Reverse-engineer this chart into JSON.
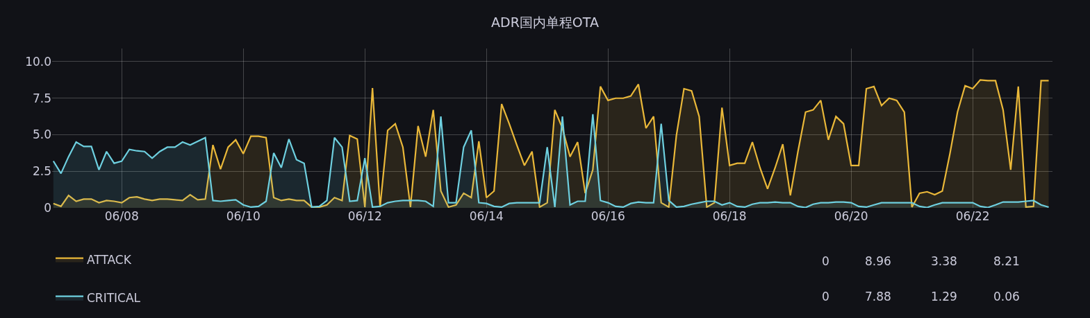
{
  "chart_data": {
    "type": "area",
    "title": "ADR国内单程OTA",
    "x": [
      "--06-06T21:00",
      "--06-07T00:00",
      "--06-07T03:00",
      "--06-07T06:00",
      "--06-07T09:00",
      "--06-07T12:00",
      "--06-07T15:00",
      "--06-07T18:00",
      "--06-07T21:00",
      "--06-08T00:00",
      "--06-08T03:00",
      "--06-08T06:00",
      "--06-08T09:00",
      "--06-08T12:00",
      "--06-08T15:00",
      "--06-08T18:00",
      "--06-08T21:00",
      "--06-09T00:00",
      "--06-09T03:00",
      "--06-09T06:00",
      "--06-09T09:00",
      "--06-09T12:00",
      "--06-09T15:00",
      "--06-09T18:00",
      "--06-09T21:00",
      "--06-10T00:00",
      "--06-10T03:00",
      "--06-10T06:00",
      "--06-10T09:00",
      "--06-10T12:00",
      "--06-10T15:00",
      "--06-10T18:00",
      "--06-10T21:00",
      "--06-11T00:00",
      "--06-11T03:00",
      "--06-11T06:00",
      "--06-11T09:00",
      "--06-11T12:00",
      "--06-11T15:00",
      "--06-11T18:00",
      "--06-11T21:00",
      "--06-12T00:00",
      "--06-12T03:00",
      "--06-12T06:00",
      "--06-12T09:00",
      "--06-12T12:00",
      "--06-12T15:00",
      "--06-12T18:00",
      "--06-12T21:00",
      "--06-13T00:00",
      "--06-13T03:00",
      "--06-13T06:00",
      "--06-13T09:00",
      "--06-13T12:00",
      "--06-13T15:00",
      "--06-13T18:00",
      "--06-13T21:00",
      "--06-14T00:00",
      "--06-14T03:00",
      "--06-14T06:00",
      "--06-14T09:00",
      "--06-14T12:00",
      "--06-14T15:00",
      "--06-14T18:00",
      "--06-14T21:00",
      "--06-15T00:00",
      "--06-15T03:00",
      "--06-15T06:00",
      "--06-15T09:00",
      "--06-15T12:00",
      "--06-15T15:00",
      "--06-15T18:00",
      "--06-15T21:00",
      "--06-16T00:00",
      "--06-16T03:00",
      "--06-16T06:00",
      "--06-16T09:00",
      "--06-16T12:00",
      "--06-16T15:00",
      "--06-16T18:00",
      "--06-16T21:00",
      "--06-17T00:00",
      "--06-17T03:00",
      "--06-17T06:00",
      "--06-17T09:00",
      "--06-17T12:00",
      "--06-17T15:00",
      "--06-17T18:00",
      "--06-17T21:00",
      "--06-18T00:00",
      "--06-18T03:00",
      "--06-18T06:00",
      "--06-18T09:00",
      "--06-18T12:00",
      "--06-18T15:00",
      "--06-18T18:00",
      "--06-18T21:00",
      "--06-19T00:00",
      "--06-19T03:00",
      "--06-19T06:00",
      "--06-19T09:00",
      "--06-19T12:00",
      "--06-19T15:00",
      "--06-19T18:00",
      "--06-19T21:00",
      "--06-20T00:00",
      "--06-20T03:00",
      "--06-20T06:00",
      "--06-20T09:00",
      "--06-20T12:00",
      "--06-20T15:00",
      "--06-20T18:00",
      "--06-20T21:00",
      "--06-21T00:00",
      "--06-21T03:00",
      "--06-21T06:00",
      "--06-21T09:00",
      "--06-21T12:00",
      "--06-21T15:00",
      "--06-21T18:00",
      "--06-21T21:00",
      "--06-22T00:00",
      "--06-22T03:00",
      "--06-22T06:00",
      "--06-22T09:00",
      "--06-22T12:00",
      "--06-22T15:00",
      "--06-22T18:00",
      "--06-22T21:00",
      "--06-23T00:00",
      "--06-23T03:00",
      "--06-23T06:00"
    ],
    "series": [
      {
        "name": "ATTACK",
        "color": "#eab839",
        "values": [
          0.3,
          0.1,
          0.85,
          0.45,
          0.6,
          0.6,
          0.35,
          0.5,
          0.45,
          0.35,
          0.7,
          0.75,
          0.6,
          0.5,
          0.6,
          0.6,
          0.55,
          0.5,
          0.9,
          0.55,
          0.6,
          4.3,
          2.65,
          4.15,
          4.65,
          3.7,
          4.9,
          4.9,
          4.8,
          0.7,
          0.5,
          0.6,
          0.5,
          0.5,
          0.05,
          0.05,
          0.2,
          0.7,
          0.5,
          4.95,
          4.7,
          0.05,
          8.2,
          0.05,
          5.3,
          5.75,
          4.15,
          0.05,
          5.6,
          3.5,
          6.7,
          1.15,
          0.05,
          0.2,
          1.0,
          0.7,
          4.55,
          0.7,
          1.15,
          7.1,
          5.75,
          4.3,
          2.9,
          3.85,
          0.05,
          0.35,
          6.7,
          5.45,
          3.5,
          4.5,
          1.0,
          2.6,
          8.3,
          7.35,
          7.5,
          7.5,
          7.65,
          8.45,
          5.45,
          6.25,
          0.35,
          0.05,
          4.95,
          8.15,
          8.0,
          6.25,
          0.05,
          0.35,
          6.85,
          2.9,
          3.05,
          3.05,
          4.5,
          2.75,
          1.3,
          2.75,
          4.35,
          0.85,
          3.85,
          6.55,
          6.7,
          7.35,
          4.65,
          6.25,
          5.75,
          2.9,
          2.9,
          8.15,
          8.3,
          7.0,
          7.5,
          7.35,
          6.55,
          0.05,
          1.0,
          1.1,
          0.9,
          1.15,
          3.7,
          6.55,
          8.35,
          8.15,
          8.75,
          8.7,
          8.7,
          6.7,
          2.6,
          8.3,
          0.05,
          0.1,
          8.7,
          8.7
        ]
      },
      {
        "name": "CRITICAL",
        "color": "#6ed0e0",
        "values": [
          3.2,
          2.35,
          3.5,
          4.5,
          4.2,
          4.2,
          2.6,
          3.85,
          3.05,
          3.2,
          4.0,
          3.9,
          3.85,
          3.4,
          3.85,
          4.15,
          4.15,
          4.5,
          4.3,
          4.55,
          4.8,
          0.5,
          0.45,
          0.5,
          0.55,
          0.2,
          0.05,
          0.1,
          0.45,
          3.75,
          2.75,
          4.7,
          3.3,
          3.05,
          0.05,
          0.1,
          0.5,
          4.8,
          4.15,
          0.45,
          0.5,
          3.4,
          0.05,
          0.1,
          0.35,
          0.45,
          0.5,
          0.5,
          0.5,
          0.45,
          0.1,
          6.25,
          0.35,
          0.35,
          4.15,
          5.3,
          0.35,
          0.3,
          0.1,
          0.05,
          0.3,
          0.35,
          0.35,
          0.35,
          0.35,
          4.15,
          0.05,
          6.25,
          0.2,
          0.45,
          0.45,
          6.4,
          0.5,
          0.35,
          0.1,
          0.05,
          0.3,
          0.4,
          0.35,
          0.35,
          5.75,
          0.5,
          0.05,
          0.1,
          0.25,
          0.35,
          0.45,
          0.45,
          0.2,
          0.35,
          0.1,
          0.05,
          0.25,
          0.35,
          0.35,
          0.4,
          0.35,
          0.35,
          0.1,
          0.02,
          0.25,
          0.35,
          0.35,
          0.4,
          0.4,
          0.35,
          0.1,
          0.05,
          0.2,
          0.35,
          0.35,
          0.35,
          0.35,
          0.35,
          0.1,
          0.02,
          0.2,
          0.35,
          0.35,
          0.35,
          0.35,
          0.35,
          0.1,
          0.02,
          0.2,
          0.4,
          0.4,
          0.4,
          0.45,
          0.5,
          0.2,
          0.05
        ]
      }
    ],
    "xlim": [
      "--06-06T20:30",
      "--06-23T07:30"
    ],
    "xticks": [
      {
        "value": "--06-08",
        "label": "06/08"
      },
      {
        "value": "--06-10",
        "label": "06/10"
      },
      {
        "value": "--06-12",
        "label": "06/12"
      },
      {
        "value": "--06-14",
        "label": "06/14"
      },
      {
        "value": "--06-16",
        "label": "06/16"
      },
      {
        "value": "--06-18",
        "label": "06/18"
      },
      {
        "value": "--06-20",
        "label": "06/20"
      },
      {
        "value": "--06-22",
        "label": "06/22"
      }
    ],
    "ylim": [
      0,
      10.9
    ],
    "yticks": [
      0,
      2.5,
      {
        "value": 5,
        "label": "5.0"
      },
      7.5,
      {
        "value": 10,
        "label": "10.0"
      }
    ],
    "grid": true,
    "legend": "bottom",
    "annotations": [
      "0",
      "8.96",
      "3.38",
      "8.21",
      "0",
      "7.88",
      "1.29",
      "0.06"
    ]
  }
}
